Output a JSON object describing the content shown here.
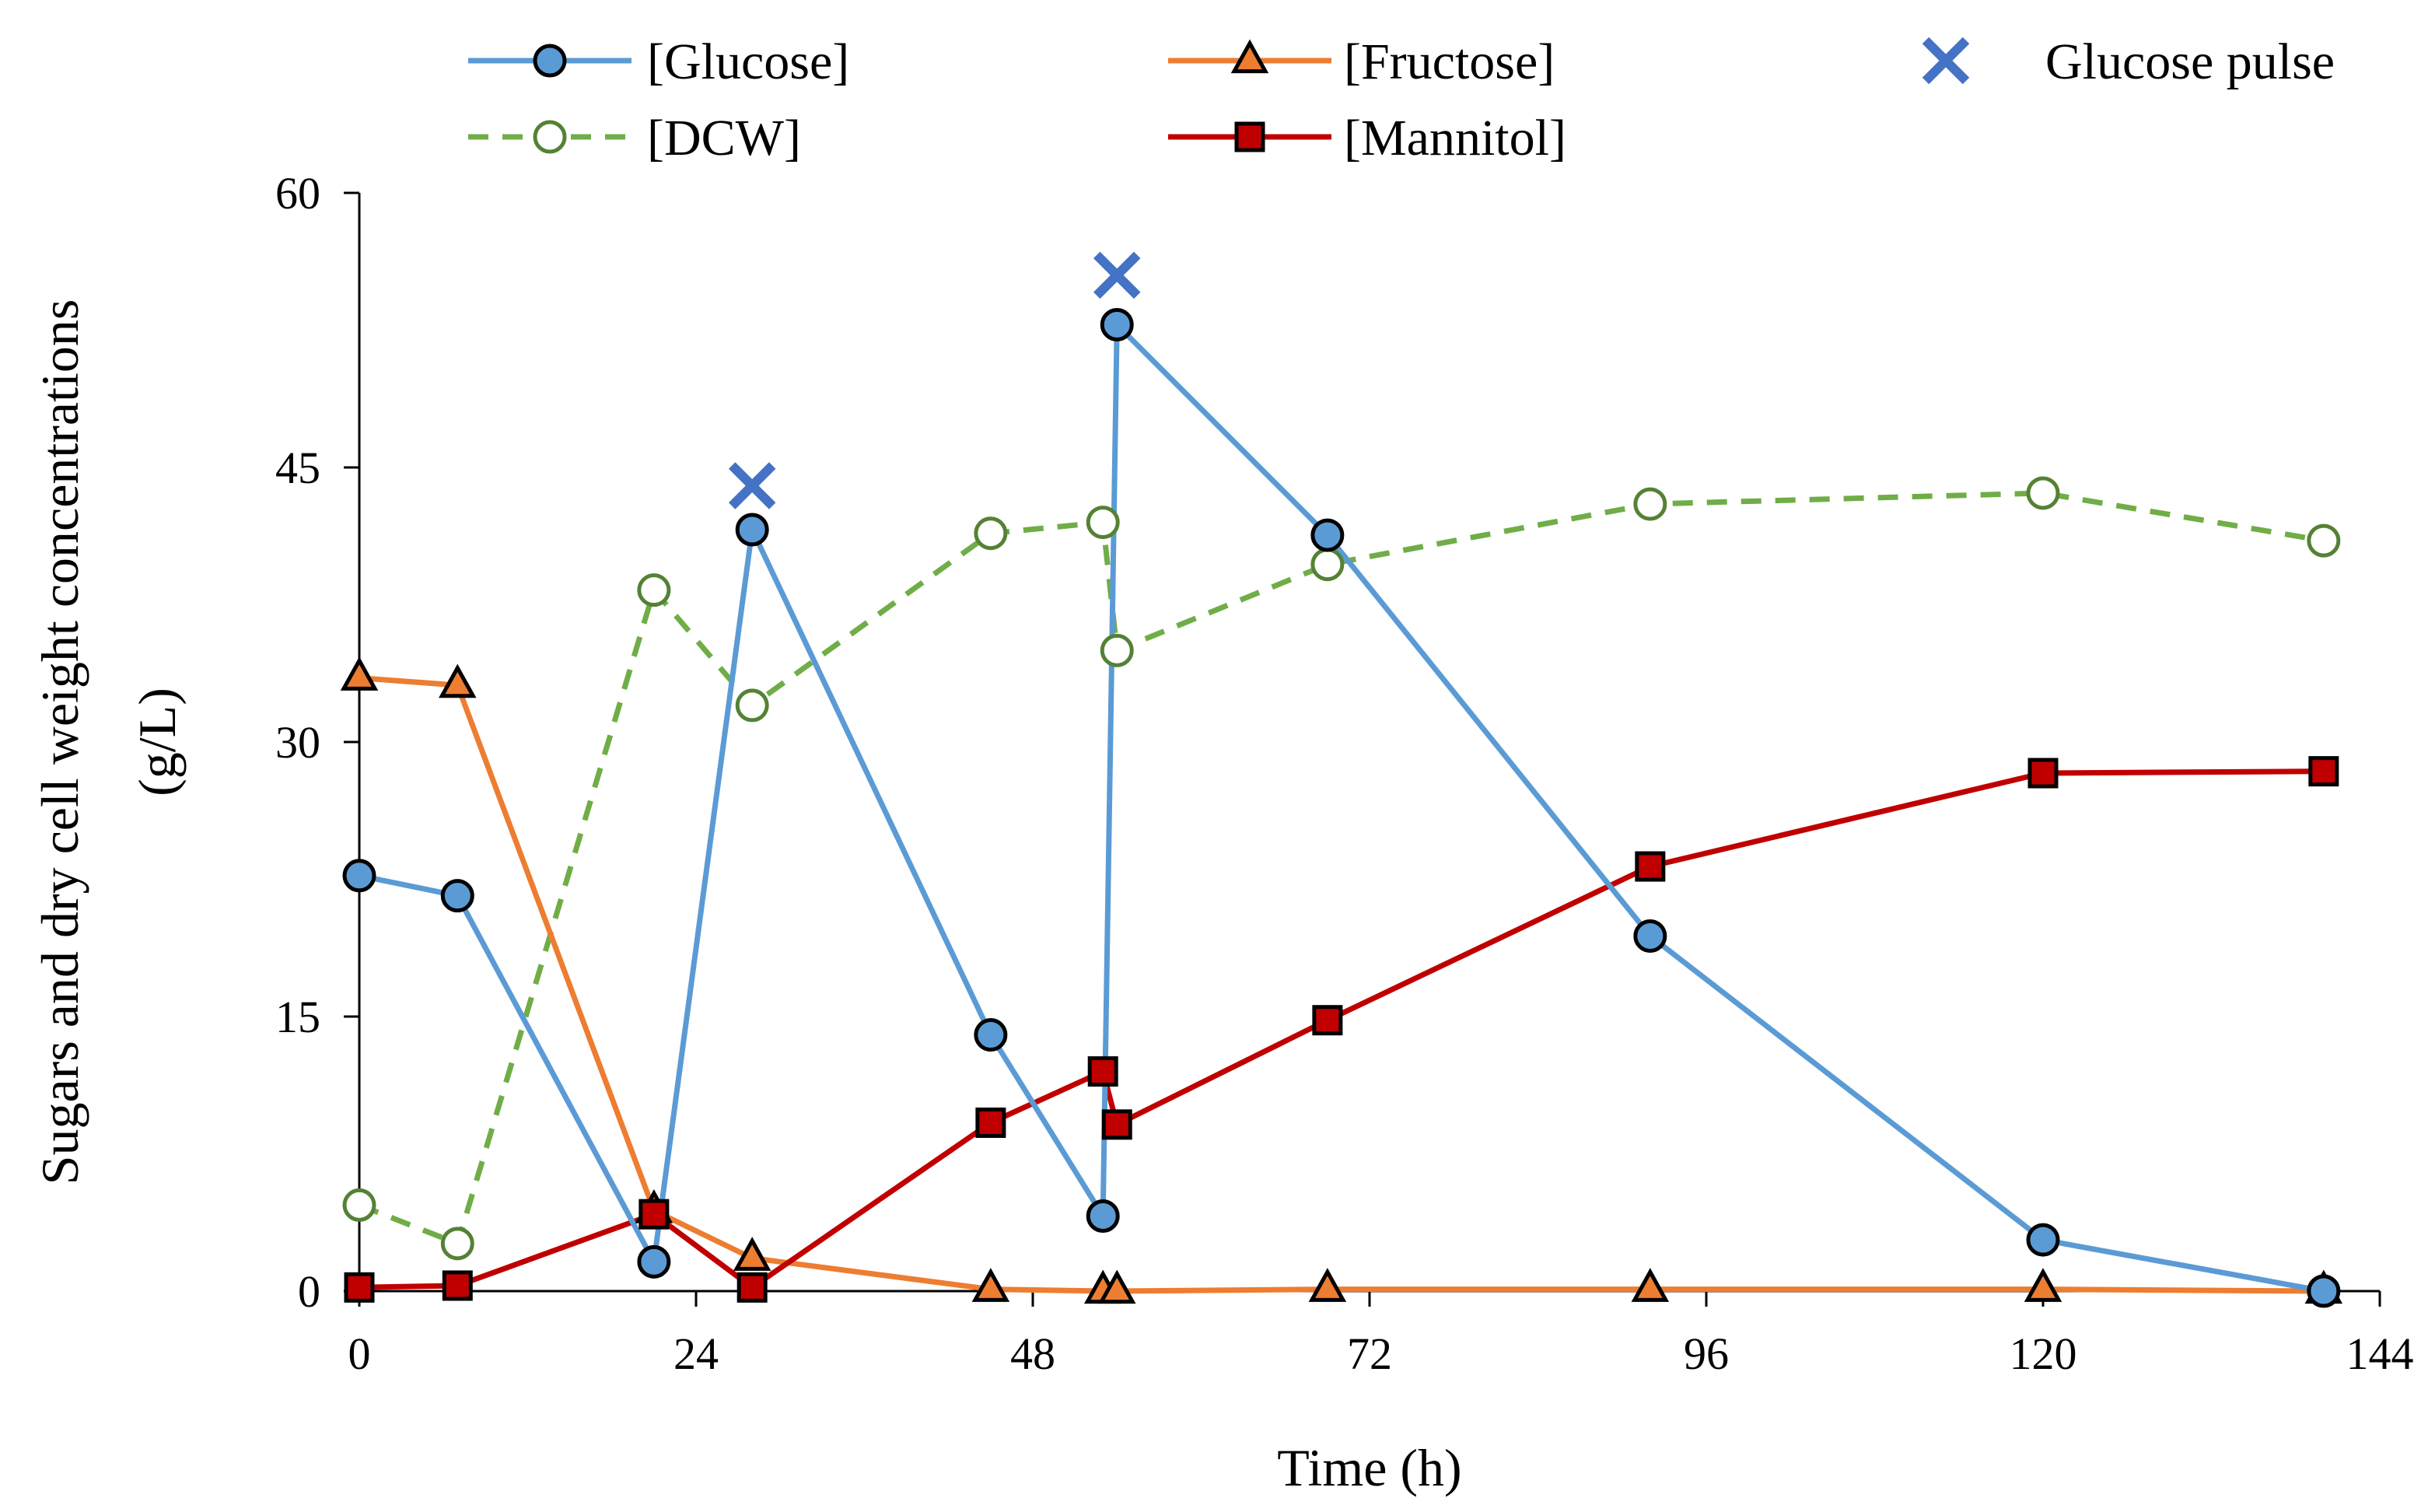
{
  "chart_data": {
    "type": "line",
    "xlabel": "Time (h)",
    "ylabel_lines": [
      "Sugars and dry cell weight concentrations",
      "(g/L)"
    ],
    "xlim": [
      0,
      144
    ],
    "ylim": [
      0,
      60
    ],
    "xticks": [
      0,
      24,
      48,
      72,
      96,
      120,
      144
    ],
    "yticks": [
      0,
      15,
      30,
      45,
      60
    ],
    "legend_position": "top",
    "series": [
      {
        "key": "glucose",
        "name": "[Glucose]",
        "color": "#5b9bd5",
        "marker": "circle",
        "marker_fill": "#5b9bd5",
        "dash": false,
        "x": [
          0,
          7,
          21,
          28,
          45,
          53,
          54,
          69,
          92,
          120,
          140
        ],
        "y": [
          22.7,
          21.6,
          1.6,
          41.6,
          14.0,
          4.1,
          52.8,
          41.3,
          19.4,
          2.8,
          0
        ]
      },
      {
        "key": "fructose",
        "name": "[Fructose]",
        "color": "#ed7d31",
        "marker": "triangle",
        "marker_fill": "#ed7d31",
        "dash": false,
        "x": [
          0,
          7,
          21,
          28,
          45,
          53,
          54,
          69,
          92,
          120,
          140
        ],
        "y": [
          33.5,
          33.1,
          4.4,
          1.8,
          0.1,
          0,
          0,
          0.1,
          0.1,
          0.1,
          0
        ]
      },
      {
        "key": "dcw",
        "name": "[DCW]",
        "color": "#70ad47",
        "marker": "circle",
        "marker_fill": "#ffffff",
        "dash": true,
        "x": [
          0,
          7,
          21,
          28,
          45,
          53,
          54,
          69,
          92,
          120,
          140
        ],
        "y": [
          4.7,
          2.6,
          38.3,
          32.0,
          41.4,
          42.0,
          35.0,
          39.7,
          43.0,
          43.6,
          41.0
        ]
      },
      {
        "key": "mannitol",
        "name": "[Mannitol]",
        "color": "#c00000",
        "marker": "square",
        "marker_fill": "#c00000",
        "dash": false,
        "x": [
          0,
          7,
          21,
          28,
          45,
          53,
          54,
          69,
          92,
          120,
          140
        ],
        "y": [
          0.2,
          0.3,
          4.2,
          0.2,
          9.2,
          12.0,
          9.1,
          14.8,
          23.2,
          28.3,
          28.4
        ]
      }
    ],
    "pulses": {
      "name": "Glucose pulse",
      "color": "#4472c4",
      "marker": "x",
      "x": [
        28,
        54
      ],
      "y": [
        44,
        55.5
      ]
    }
  }
}
